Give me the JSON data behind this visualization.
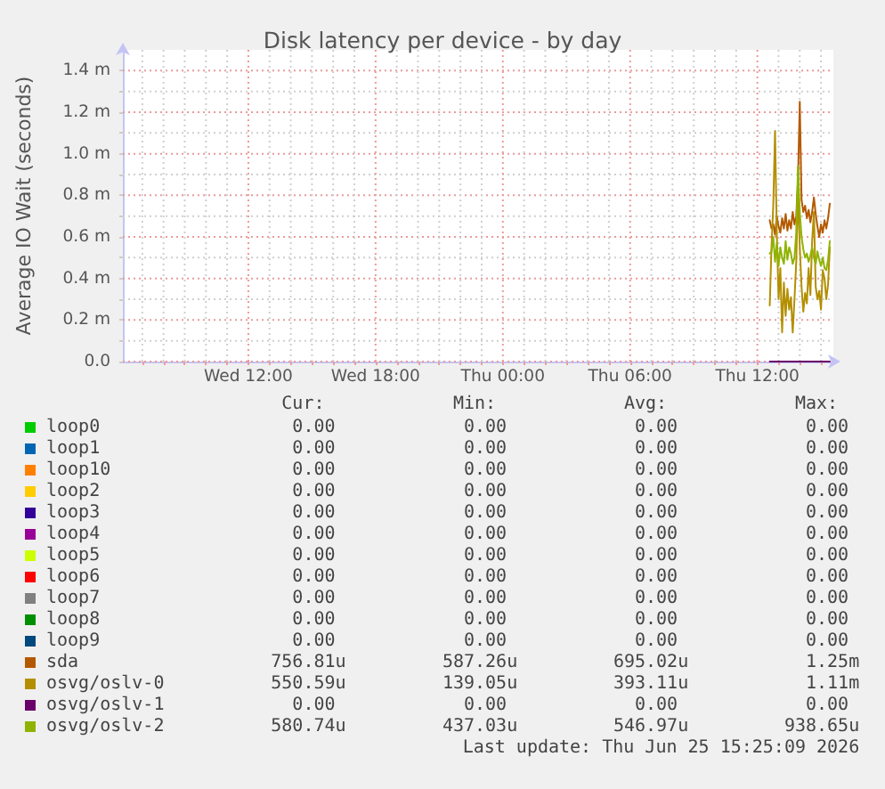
{
  "chart_data": {
    "type": "line",
    "title": "Disk latency per device - by day",
    "ylabel": "Average IO Wait (seconds)",
    "x": [
      "2026-06-25T12:35",
      "2026-06-25T12:40",
      "2026-06-25T12:45",
      "2026-06-25T12:50",
      "2026-06-25T12:55",
      "2026-06-25T13:00",
      "2026-06-25T13:05",
      "2026-06-25T13:10",
      "2026-06-25T13:15",
      "2026-06-25T13:20",
      "2026-06-25T13:25",
      "2026-06-25T13:30",
      "2026-06-25T13:35",
      "2026-06-25T13:40",
      "2026-06-25T13:45",
      "2026-06-25T13:50",
      "2026-06-25T13:55",
      "2026-06-25T14:00",
      "2026-06-25T14:05",
      "2026-06-25T14:10",
      "2026-06-25T14:15",
      "2026-06-25T14:20",
      "2026-06-25T14:25",
      "2026-06-25T14:30",
      "2026-06-25T14:35",
      "2026-06-25T14:40",
      "2026-06-25T14:45",
      "2026-06-25T14:50",
      "2026-06-25T14:55",
      "2026-06-25T15:00",
      "2026-06-25T15:05",
      "2026-06-25T15:10",
      "2026-06-25T15:15",
      "2026-06-25T15:20",
      "2026-06-25T15:25"
    ],
    "xlim": [
      "2026-06-24T06:05",
      "2026-06-25T15:35"
    ],
    "xticks": [
      {
        "value": "2026-06-24T07:00",
        "label": null
      },
      {
        "value": "2026-06-24T08:00",
        "label": null
      },
      {
        "value": "2026-06-24T09:00",
        "label": null
      },
      {
        "value": "2026-06-24T10:00",
        "label": null
      },
      {
        "value": "2026-06-24T11:00",
        "label": null
      },
      {
        "value": "2026-06-24T12:00",
        "label": "Wed 12:00"
      },
      {
        "value": "2026-06-24T13:00",
        "label": null
      },
      {
        "value": "2026-06-24T14:00",
        "label": null
      },
      {
        "value": "2026-06-24T15:00",
        "label": null
      },
      {
        "value": "2026-06-24T16:00",
        "label": null
      },
      {
        "value": "2026-06-24T17:00",
        "label": null
      },
      {
        "value": "2026-06-24T18:00",
        "label": "Wed 18:00"
      },
      {
        "value": "2026-06-24T19:00",
        "label": null
      },
      {
        "value": "2026-06-24T20:00",
        "label": null
      },
      {
        "value": "2026-06-24T21:00",
        "label": null
      },
      {
        "value": "2026-06-24T22:00",
        "label": null
      },
      {
        "value": "2026-06-24T23:00",
        "label": null
      },
      {
        "value": "2026-06-25T00:00",
        "label": "Thu 00:00"
      },
      {
        "value": "2026-06-25T01:00",
        "label": null
      },
      {
        "value": "2026-06-25T02:00",
        "label": null
      },
      {
        "value": "2026-06-25T03:00",
        "label": null
      },
      {
        "value": "2026-06-25T04:00",
        "label": null
      },
      {
        "value": "2026-06-25T05:00",
        "label": null
      },
      {
        "value": "2026-06-25T06:00",
        "label": "Thu 06:00"
      },
      {
        "value": "2026-06-25T07:00",
        "label": null
      },
      {
        "value": "2026-06-25T08:00",
        "label": null
      },
      {
        "value": "2026-06-25T09:00",
        "label": null
      },
      {
        "value": "2026-06-25T10:00",
        "label": null
      },
      {
        "value": "2026-06-25T11:00",
        "label": null
      },
      {
        "value": "2026-06-25T12:00",
        "label": "Thu 12:00"
      },
      {
        "value": "2026-06-25T13:00",
        "label": null
      },
      {
        "value": "2026-06-25T14:00",
        "label": null
      },
      {
        "value": "2026-06-25T15:00",
        "label": null
      }
    ],
    "ylim": [
      0,
      1.5
    ],
    "yticks": [
      {
        "value": 0,
        "label": "0.0"
      },
      {
        "value": 0.1,
        "label": null
      },
      {
        "value": 0.2,
        "label": "0.2 m"
      },
      {
        "value": 0.3,
        "label": null
      },
      {
        "value": 0.4,
        "label": "0.4 m"
      },
      {
        "value": 0.5,
        "label": null
      },
      {
        "value": 0.6,
        "label": "0.6 m"
      },
      {
        "value": 0.7,
        "label": null
      },
      {
        "value": 0.8,
        "label": "0.8 m"
      },
      {
        "value": 0.9,
        "label": null
      },
      {
        "value": 1.0,
        "label": "1.0 m"
      },
      {
        "value": 1.1,
        "label": null
      },
      {
        "value": 1.2,
        "label": "1.2 m"
      },
      {
        "value": 1.3,
        "label": null
      },
      {
        "value": 1.4,
        "label": "1.4 m"
      }
    ],
    "series": [
      {
        "name": "loop0",
        "color": "#00cc00",
        "values": [
          null,
          null,
          null,
          null,
          null,
          null,
          null,
          null,
          null,
          null,
          null,
          null,
          null,
          null,
          null,
          null,
          null,
          null,
          null,
          null,
          null,
          null,
          null,
          null,
          null,
          null,
          null,
          null,
          null,
          null,
          null,
          null,
          null,
          null,
          null
        ]
      },
      {
        "name": "loop1",
        "color": "#0066b3",
        "values": [
          null,
          null,
          null,
          null,
          null,
          null,
          null,
          null,
          null,
          null,
          null,
          null,
          null,
          null,
          null,
          null,
          null,
          null,
          null,
          null,
          null,
          null,
          null,
          null,
          null,
          null,
          null,
          null,
          null,
          null,
          null,
          null,
          null,
          null,
          null
        ]
      },
      {
        "name": "loop10",
        "color": "#ff8000",
        "values": [
          null,
          null,
          null,
          null,
          null,
          null,
          null,
          null,
          null,
          null,
          null,
          null,
          null,
          null,
          null,
          null,
          null,
          null,
          null,
          null,
          null,
          null,
          null,
          null,
          null,
          null,
          null,
          null,
          null,
          null,
          null,
          null,
          null,
          null,
          null
        ]
      },
      {
        "name": "loop2",
        "color": "#ffcc00",
        "values": [
          null,
          null,
          null,
          null,
          null,
          null,
          null,
          null,
          null,
          null,
          null,
          null,
          null,
          null,
          null,
          null,
          null,
          null,
          null,
          null,
          null,
          null,
          null,
          null,
          null,
          null,
          null,
          null,
          null,
          null,
          null,
          null,
          null,
          null,
          null
        ]
      },
      {
        "name": "loop3",
        "color": "#330099",
        "values": [
          null,
          null,
          null,
          null,
          null,
          null,
          null,
          null,
          null,
          null,
          null,
          null,
          null,
          null,
          null,
          null,
          null,
          null,
          null,
          null,
          null,
          null,
          null,
          null,
          null,
          null,
          null,
          null,
          null,
          null,
          null,
          null,
          null,
          null,
          null
        ]
      },
      {
        "name": "loop4",
        "color": "#990099",
        "values": [
          null,
          null,
          null,
          null,
          null,
          null,
          null,
          null,
          null,
          null,
          null,
          null,
          null,
          null,
          null,
          null,
          null,
          null,
          null,
          null,
          null,
          null,
          null,
          null,
          null,
          null,
          null,
          null,
          null,
          null,
          null,
          null,
          null,
          null,
          null
        ]
      },
      {
        "name": "loop5",
        "color": "#ccff00",
        "values": [
          null,
          null,
          null,
          null,
          null,
          null,
          null,
          null,
          null,
          null,
          null,
          null,
          null,
          null,
          null,
          null,
          null,
          null,
          null,
          null,
          null,
          null,
          null,
          null,
          null,
          null,
          null,
          null,
          null,
          null,
          null,
          null,
          null,
          null,
          null
        ]
      },
      {
        "name": "loop6",
        "color": "#ff0000",
        "values": [
          null,
          null,
          null,
          null,
          null,
          null,
          null,
          null,
          null,
          null,
          null,
          null,
          null,
          null,
          null,
          null,
          null,
          null,
          null,
          null,
          null,
          null,
          null,
          null,
          null,
          null,
          null,
          null,
          null,
          null,
          null,
          null,
          null,
          null,
          null
        ]
      },
      {
        "name": "loop7",
        "color": "#808080",
        "values": [
          null,
          null,
          null,
          null,
          null,
          null,
          null,
          null,
          null,
          null,
          null,
          null,
          null,
          null,
          null,
          null,
          null,
          null,
          null,
          null,
          null,
          null,
          null,
          null,
          null,
          null,
          null,
          null,
          null,
          null,
          null,
          null,
          null,
          null,
          null
        ]
      },
      {
        "name": "loop8",
        "color": "#008f00",
        "values": [
          null,
          null,
          null,
          null,
          null,
          null,
          null,
          null,
          null,
          null,
          null,
          null,
          null,
          null,
          null,
          null,
          null,
          null,
          null,
          null,
          null,
          null,
          null,
          null,
          null,
          null,
          null,
          null,
          null,
          null,
          null,
          null,
          null,
          null,
          null
        ]
      },
      {
        "name": "loop9",
        "color": "#00487d",
        "values": [
          null,
          null,
          null,
          null,
          null,
          null,
          null,
          null,
          null,
          null,
          null,
          null,
          null,
          null,
          null,
          null,
          null,
          null,
          null,
          null,
          null,
          null,
          null,
          null,
          null,
          null,
          null,
          null,
          null,
          null,
          null,
          null,
          null,
          null,
          null
        ]
      },
      {
        "name": "sda",
        "color": "#b35a00",
        "values": [
          0.68,
          0.64,
          0.66,
          0.61,
          0.7,
          0.65,
          0.62,
          0.69,
          0.64,
          0.71,
          0.63,
          0.68,
          0.64,
          0.72,
          0.66,
          0.7,
          0.88,
          1.25,
          0.78,
          0.72,
          0.75,
          0.69,
          0.73,
          0.67,
          0.72,
          0.79,
          0.71,
          0.65,
          0.6,
          0.66,
          0.62,
          0.68,
          0.64,
          0.69,
          0.76
        ]
      },
      {
        "name": "osvg/oslv-0",
        "color": "#b38f00",
        "values": [
          0.27,
          0.55,
          0.75,
          1.11,
          0.62,
          0.3,
          0.45,
          0.14,
          0.38,
          0.22,
          0.35,
          0.25,
          0.31,
          0.14,
          0.3,
          0.48,
          0.82,
          0.55,
          0.36,
          0.24,
          0.33,
          0.28,
          0.45,
          0.32,
          0.58,
          0.72,
          0.36,
          0.3,
          0.34,
          0.25,
          0.44,
          0.4,
          0.3,
          0.37,
          0.55
        ]
      },
      {
        "name": "osvg/oslv-1",
        "color": "#6b006b",
        "values": [
          0,
          0,
          0,
          0,
          0,
          0,
          0,
          0,
          0,
          0,
          0,
          0,
          0,
          0,
          0,
          0,
          0,
          0,
          0,
          0,
          0,
          0,
          0,
          0,
          0,
          0,
          0,
          0,
          0,
          0,
          0,
          0,
          0,
          0,
          0
        ]
      },
      {
        "name": "osvg/oslv-2",
        "color": "#8fb300",
        "values": [
          0.52,
          0.53,
          0.6,
          0.48,
          0.57,
          0.46,
          0.55,
          0.5,
          0.47,
          0.58,
          0.49,
          0.55,
          0.52,
          0.47,
          0.5,
          0.62,
          0.94,
          0.72,
          0.6,
          0.54,
          0.5,
          0.52,
          0.48,
          0.51,
          0.55,
          0.5,
          0.47,
          0.53,
          0.49,
          0.46,
          0.5,
          0.45,
          0.44,
          0.49,
          0.58
        ]
      }
    ],
    "grid": true,
    "legend": "bottom",
    "annotations": [
      "Cur:",
      "Min:",
      "Avg:",
      "Max:",
      "0.00",
      "0.00",
      "0.00",
      "0.00",
      "0.00",
      "0.00",
      "0.00",
      "0.00",
      "0.00",
      "0.00",
      "0.00",
      "0.00",
      "0.00",
      "0.00",
      "0.00",
      "0.00",
      "0.00",
      "0.00",
      "0.00",
      "0.00",
      "0.00",
      "0.00",
      "0.00",
      "0.00",
      "0.00",
      "0.00",
      "0.00",
      "0.00",
      "0.00",
      "0.00",
      "0.00",
      "0.00",
      "0.00",
      "0.00",
      "0.00",
      "0.00",
      "0.00",
      "0.00",
      "0.00",
      "0.00",
      "0.00",
      "0.00",
      "0.00",
      "0.00",
      "756.81u",
      "587.26u",
      "695.02u",
      "1.25m",
      "550.59u",
      "139.05u",
      "393.11u",
      "1.11m",
      "0.00",
      "0.00",
      "0.00",
      "0.00",
      "580.74u",
      "437.03u",
      "546.97u",
      "938.65u",
      "Last update: Thu Jun 25 15:25:09 2026"
    ]
  }
}
